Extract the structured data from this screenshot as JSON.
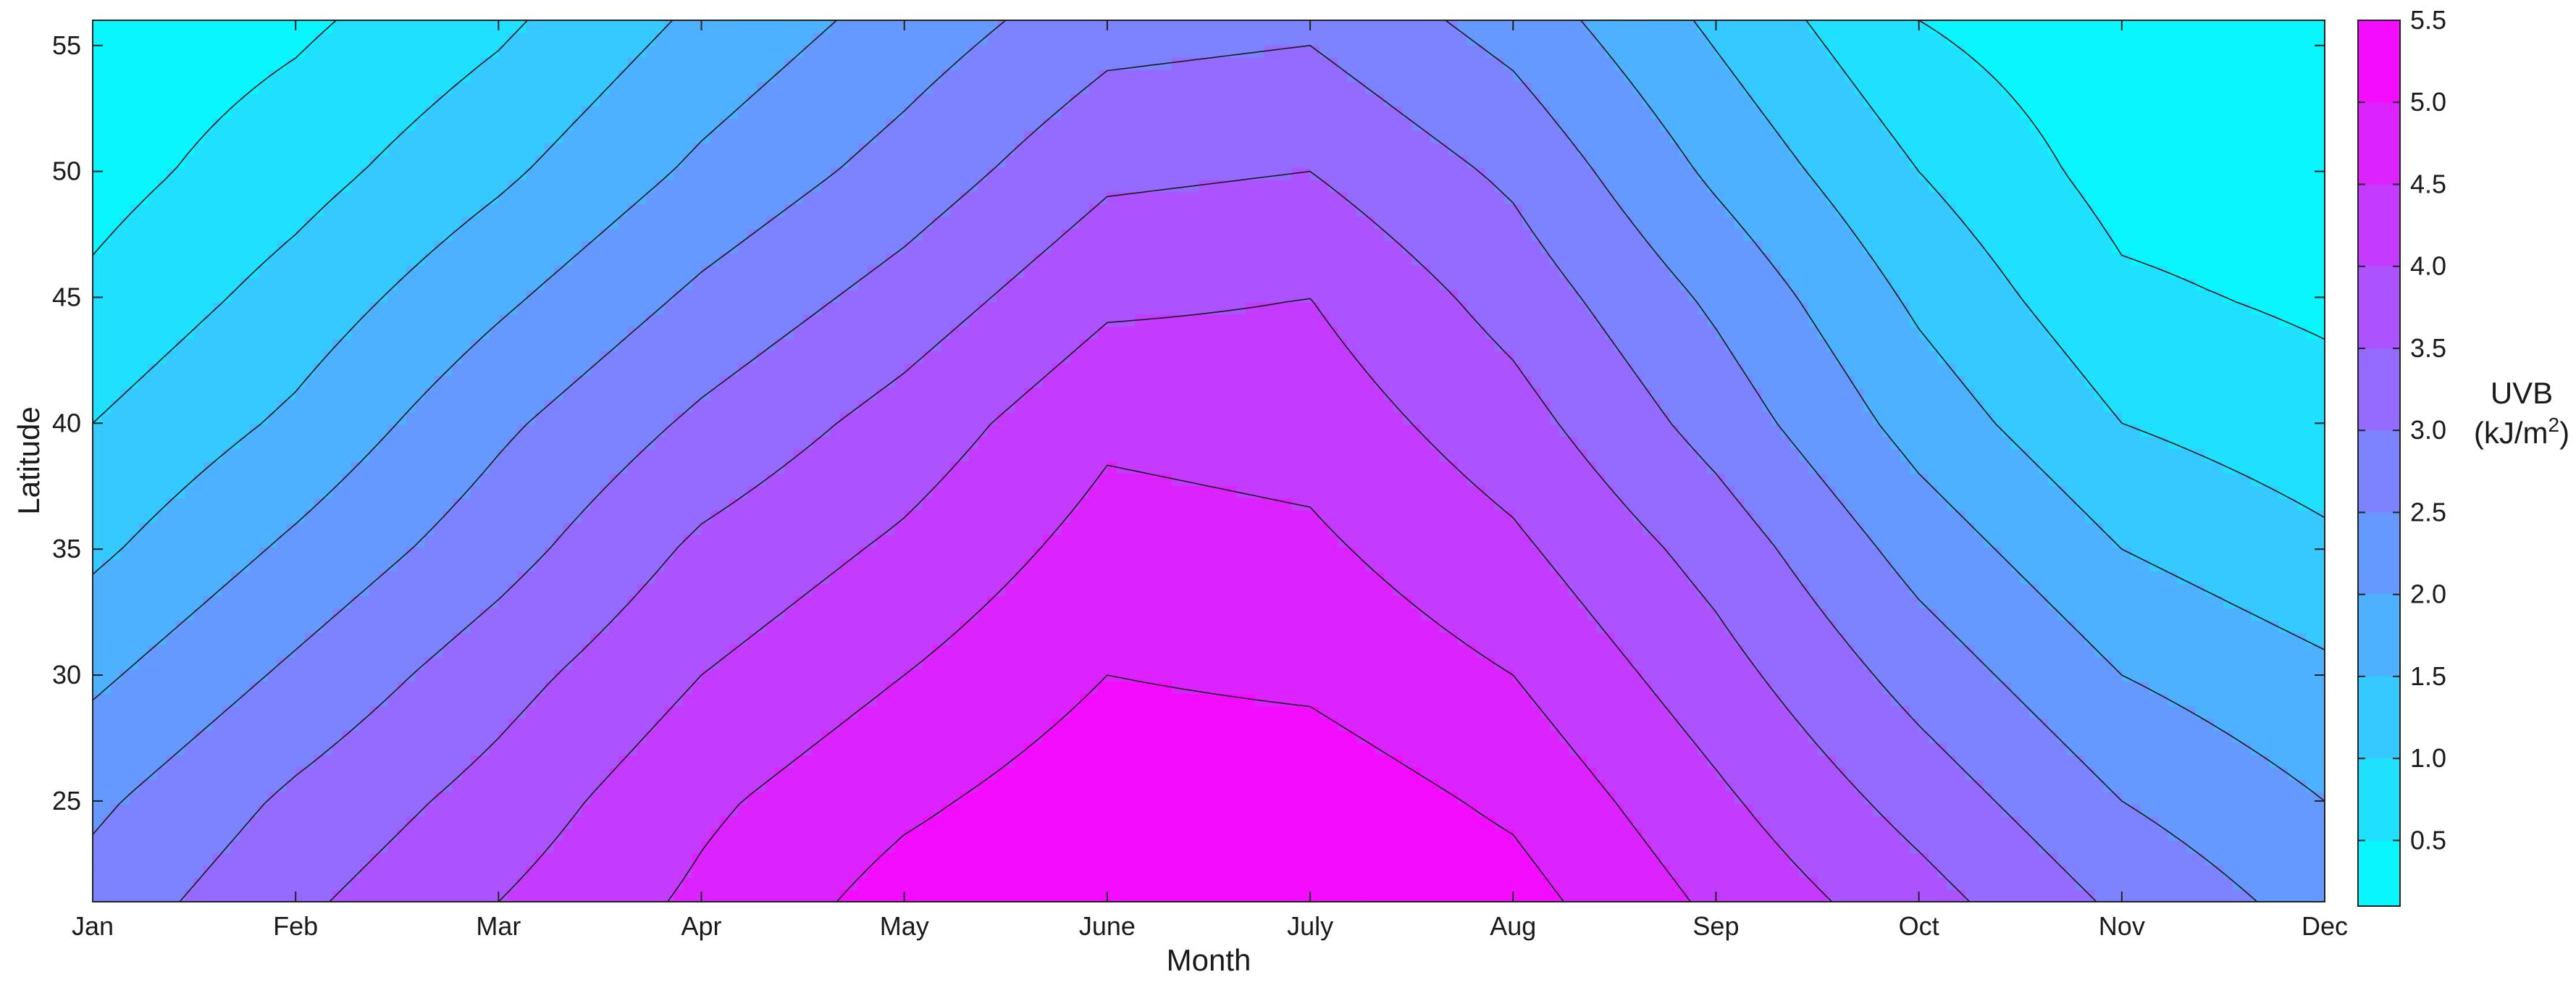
{
  "chart_data": {
    "type": "heatmap",
    "subtype": "filled-contour",
    "xlabel": "Month",
    "ylabel": "Latitude",
    "x_categories": [
      "Jan",
      "Feb",
      "Mar",
      "Apr",
      "May",
      "June",
      "July",
      "Aug",
      "Sep",
      "Oct",
      "Nov",
      "Dec"
    ],
    "xlim": [
      "Jan",
      "Dec"
    ],
    "ylim": [
      21,
      56
    ],
    "y_ticks": [
      25,
      30,
      35,
      40,
      45,
      50,
      55
    ],
    "colorbar": {
      "title": "UVB",
      "unit_prefix": "(kJ/m",
      "unit_sup": "2",
      "unit_suffix": ")",
      "range": [
        0.1,
        5.5
      ],
      "ticks": [
        0.5,
        1.0,
        1.5,
        2.0,
        2.5,
        3.0,
        3.5,
        4.0,
        4.5,
        5.0,
        5.5
      ],
      "tick_labels": [
        "0.5",
        "1.0",
        "1.5",
        "2.0",
        "2.5",
        "3.0",
        "3.5",
        "4.0",
        "4.5",
        "5.0",
        "5.5"
      ],
      "colormap": "cool (cyan to magenta)",
      "color_low": "#00ffff",
      "color_high": "#ff00ff"
    },
    "contour_levels": [
      0.5,
      1.0,
      1.5,
      2.0,
      2.5,
      3.0,
      3.5,
      4.0,
      4.5,
      5.0
    ],
    "grid": {
      "latitudes": [
        21,
        25,
        30,
        35,
        40,
        45,
        50,
        56
      ],
      "uvb_by_month": [
        {
          "month": "Jan",
          "values": [
            2.7,
            2.4,
            1.9,
            1.4,
            1.0,
            0.6,
            0.3,
            0.1
          ]
        },
        {
          "month": "Feb",
          "values": [
            3.4,
            3.1,
            2.6,
            2.1,
            1.6,
            1.2,
            0.8,
            0.4
          ]
        },
        {
          "month": "Mar",
          "values": [
            4.0,
            3.7,
            3.3,
            2.8,
            2.4,
            1.9,
            1.4,
            0.9
          ]
        },
        {
          "month": "Apr",
          "values": [
            4.6,
            4.4,
            4.0,
            3.6,
            3.1,
            2.6,
            2.1,
            1.6
          ]
        },
        {
          "month": "May",
          "values": [
            5.2,
            4.9,
            4.5,
            4.1,
            3.7,
            3.2,
            2.7,
            2.2
          ]
        },
        {
          "month": "June",
          "values": [
            5.5,
            5.3,
            5.0,
            4.7,
            4.4,
            3.9,
            3.4,
            2.8
          ]
        },
        {
          "month": "July",
          "values": [
            5.5,
            5.3,
            4.9,
            4.6,
            4.3,
            4.0,
            3.5,
            2.9
          ]
        },
        {
          "month": "Aug",
          "values": [
            5.2,
            4.9,
            4.5,
            4.1,
            3.7,
            3.3,
            2.9,
            2.3
          ]
        },
        {
          "month": "Sep",
          "values": [
            4.4,
            4.1,
            3.7,
            3.3,
            2.8,
            2.4,
            1.9,
            1.4
          ]
        },
        {
          "month": "Oct",
          "values": [
            3.7,
            3.3,
            2.8,
            2.3,
            1.8,
            1.4,
            1.0,
            0.5
          ]
        },
        {
          "month": "Nov",
          "values": [
            2.9,
            2.5,
            2.0,
            1.5,
            1.0,
            0.6,
            0.3,
            0.1
          ]
        },
        {
          "month": "Dec",
          "values": [
            2.3,
            2.0,
            1.6,
            1.1,
            0.7,
            0.4,
            0.2,
            0.1
          ]
        }
      ]
    }
  }
}
